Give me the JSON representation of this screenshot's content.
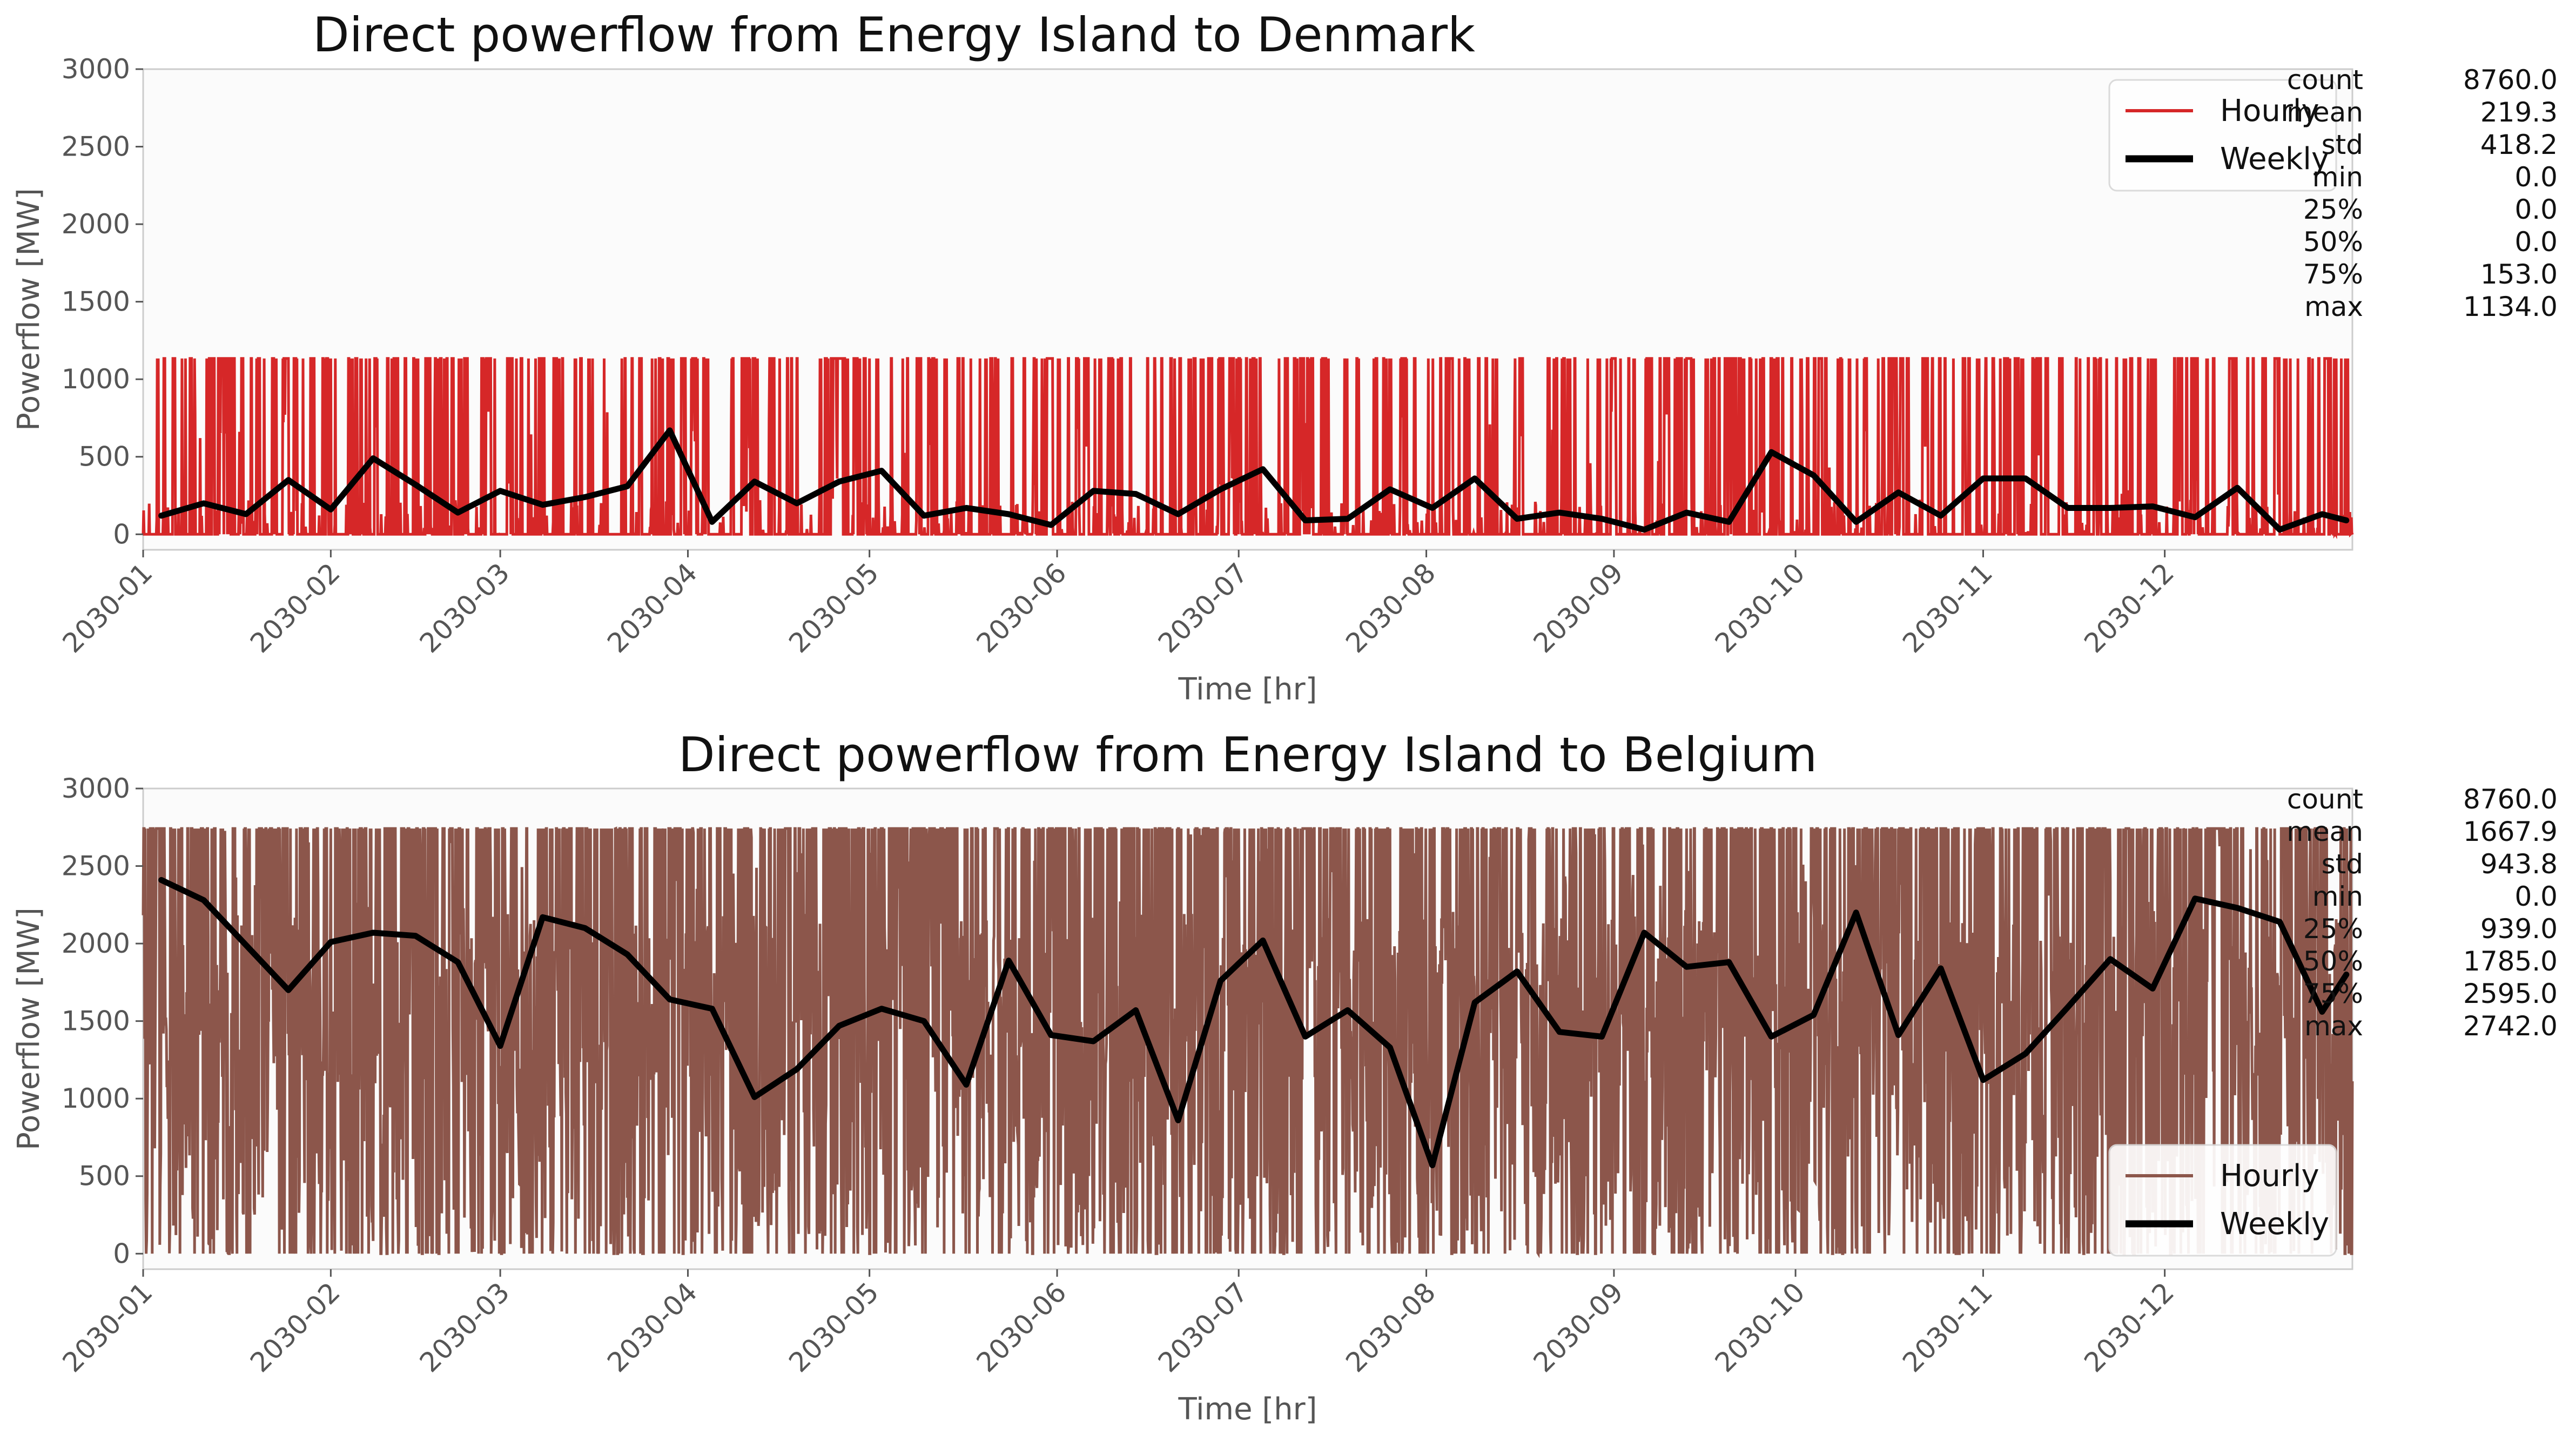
{
  "colors": {
    "denmark_hourly": "#d62728",
    "belgium_hourly": "#8c564b",
    "weekly": "#000000"
  },
  "chart_data": [
    {
      "type": "line",
      "title": "Direct powerflow from Energy Island to Denmark",
      "xlabel": "Time [hr]",
      "ylabel": "Powerflow [MW]",
      "ylim": [
        -100,
        3000
      ],
      "yticks": [
        0,
        500,
        1000,
        1500,
        2000,
        2500,
        3000
      ],
      "xlim": [
        "2030-01-01",
        "2030-12-31"
      ],
      "xticks": [
        "2030-01",
        "2030-02",
        "2030-03",
        "2030-04",
        "2030-05",
        "2030-06",
        "2030-07",
        "2030-08",
        "2030-09",
        "2030-10",
        "2030-11",
        "2030-12"
      ],
      "legend": {
        "position": "top-right",
        "entries": [
          "Hourly",
          "Weekly"
        ]
      },
      "grid": false,
      "hourly": {
        "name": "Hourly",
        "min": 0,
        "max": 1134,
        "color_key": "denmark_hourly"
      },
      "weekly": {
        "name": "Weekly",
        "x": [
          "2030-01-04",
          "2030-01-11",
          "2030-01-18",
          "2030-01-25",
          "2030-02-01",
          "2030-02-08",
          "2030-02-15",
          "2030-02-22",
          "2030-03-01",
          "2030-03-08",
          "2030-03-15",
          "2030-03-22",
          "2030-03-29",
          "2030-04-05",
          "2030-04-12",
          "2030-04-19",
          "2030-04-26",
          "2030-05-03",
          "2030-05-10",
          "2030-05-17",
          "2030-05-24",
          "2030-05-31",
          "2030-06-07",
          "2030-06-14",
          "2030-06-21",
          "2030-06-28",
          "2030-07-05",
          "2030-07-12",
          "2030-07-19",
          "2030-07-26",
          "2030-08-02",
          "2030-08-09",
          "2030-08-16",
          "2030-08-23",
          "2030-08-30",
          "2030-09-06",
          "2030-09-13",
          "2030-09-20",
          "2030-09-27",
          "2030-10-04",
          "2030-10-11",
          "2030-10-18",
          "2030-10-25",
          "2030-11-01",
          "2030-11-08",
          "2030-11-15",
          "2030-11-22",
          "2030-11-29",
          "2030-12-06",
          "2030-12-13",
          "2030-12-20",
          "2030-12-27",
          "2030-12-31"
        ],
        "values": [
          120,
          200,
          130,
          350,
          160,
          490,
          320,
          140,
          280,
          190,
          240,
          310,
          670,
          80,
          340,
          200,
          340,
          410,
          120,
          170,
          130,
          60,
          280,
          260,
          130,
          290,
          420,
          90,
          100,
          290,
          170,
          360,
          100,
          140,
          100,
          30,
          140,
          80,
          530,
          380,
          80,
          270,
          120,
          360,
          360,
          170,
          170,
          180,
          110,
          300,
          30,
          130,
          90
        ]
      }
    },
    {
      "type": "line",
      "title": "Direct powerflow from Energy Island to Belgium",
      "xlabel": "Time [hr]",
      "ylabel": "Powerflow [MW]",
      "ylim": [
        -100,
        3000
      ],
      "yticks": [
        0,
        500,
        1000,
        1500,
        2000,
        2500,
        3000
      ],
      "xlim": [
        "2030-01-01",
        "2030-12-31"
      ],
      "xticks": [
        "2030-01",
        "2030-02",
        "2030-03",
        "2030-04",
        "2030-05",
        "2030-06",
        "2030-07",
        "2030-08",
        "2030-09",
        "2030-10",
        "2030-11",
        "2030-12"
      ],
      "legend": {
        "position": "bottom-right",
        "entries": [
          "Hourly",
          "Weekly"
        ]
      },
      "grid": false,
      "hourly": {
        "name": "Hourly",
        "min": 0,
        "max": 2742,
        "color_key": "belgium_hourly"
      },
      "weekly": {
        "name": "Weekly",
        "x": [
          "2030-01-04",
          "2030-01-11",
          "2030-01-18",
          "2030-01-25",
          "2030-02-01",
          "2030-02-08",
          "2030-02-15",
          "2030-02-22",
          "2030-03-01",
          "2030-03-08",
          "2030-03-15",
          "2030-03-22",
          "2030-03-29",
          "2030-04-05",
          "2030-04-12",
          "2030-04-19",
          "2030-04-26",
          "2030-05-03",
          "2030-05-10",
          "2030-05-17",
          "2030-05-24",
          "2030-05-31",
          "2030-06-07",
          "2030-06-14",
          "2030-06-21",
          "2030-06-28",
          "2030-07-05",
          "2030-07-12",
          "2030-07-19",
          "2030-07-26",
          "2030-08-02",
          "2030-08-09",
          "2030-08-16",
          "2030-08-23",
          "2030-08-30",
          "2030-09-06",
          "2030-09-13",
          "2030-09-20",
          "2030-09-27",
          "2030-10-04",
          "2030-10-11",
          "2030-10-18",
          "2030-10-25",
          "2030-11-01",
          "2030-11-08",
          "2030-11-15",
          "2030-11-22",
          "2030-11-29",
          "2030-12-06",
          "2030-12-13",
          "2030-12-20",
          "2030-12-27",
          "2030-12-31"
        ],
        "values": [
          2410,
          2280,
          1990,
          1700,
          2010,
          2070,
          2050,
          1880,
          1340,
          2170,
          2100,
          1930,
          1640,
          1580,
          1010,
          1190,
          1470,
          1580,
          1500,
          1090,
          1890,
          1410,
          1370,
          1570,
          860,
          1760,
          2020,
          1400,
          1570,
          1330,
          570,
          1620,
          1820,
          1430,
          1400,
          2070,
          1850,
          1880,
          1400,
          1540,
          2200,
          1410,
          1840,
          1120,
          1290,
          1590,
          1900,
          1710,
          2290,
          2230,
          2140,
          1560,
          1800
        ]
      }
    }
  ],
  "stats": [
    {
      "rows": [
        {
          "label": "count",
          "value": "8760.0"
        },
        {
          "label": "mean",
          "value": "219.3"
        },
        {
          "label": "std",
          "value": "418.2"
        },
        {
          "label": "min",
          "value": "0.0"
        },
        {
          "label": "25%",
          "value": "0.0"
        },
        {
          "label": "50%",
          "value": "0.0"
        },
        {
          "label": "75%",
          "value": "153.0"
        },
        {
          "label": "max",
          "value": "1134.0"
        }
      ]
    },
    {
      "rows": [
        {
          "label": "count",
          "value": "8760.0"
        },
        {
          "label": "mean",
          "value": "1667.9"
        },
        {
          "label": "std",
          "value": "943.8"
        },
        {
          "label": "min",
          "value": "0.0"
        },
        {
          "label": "25%",
          "value": "939.0"
        },
        {
          "label": "50%",
          "value": "1785.0"
        },
        {
          "label": "75%",
          "value": "2595.0"
        },
        {
          "label": "max",
          "value": "2742.0"
        }
      ]
    }
  ]
}
